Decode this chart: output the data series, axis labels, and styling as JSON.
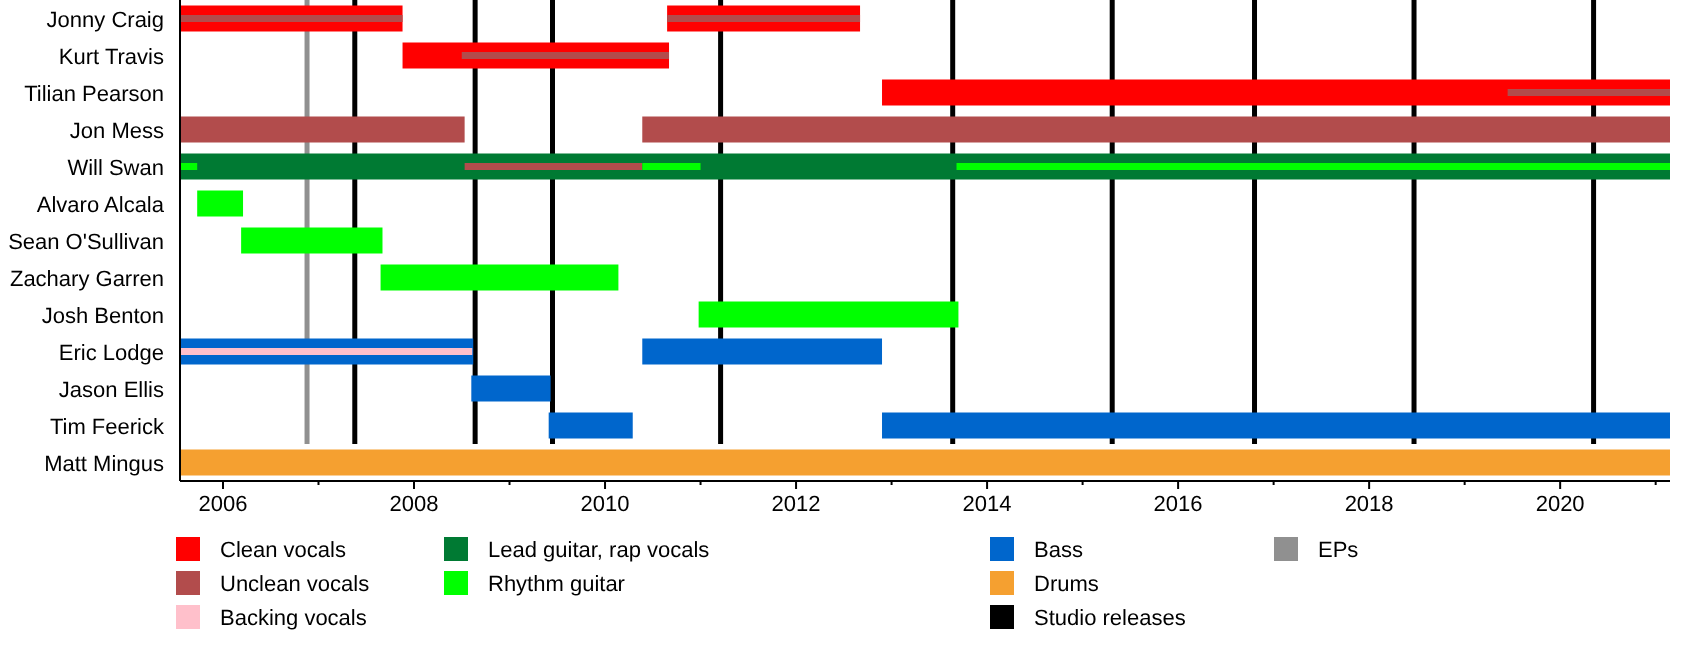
{
  "chart_data": {
    "type": "bar",
    "orientation": "horizontal",
    "legend": "bottom",
    "categories": [
      "Jonny Craig",
      "Kurt Travis",
      "Tilian Pearson",
      "Jon Mess",
      "Will Swan",
      "Alvaro Alcala",
      "Sean O'Sullivan",
      "Zachary Garren",
      "Josh Benton",
      "Eric Lodge",
      "Jason Ellis",
      "Tim Feerick",
      "Matt Mingus"
    ],
    "xlim": [
      2005.55,
      2021.15
    ],
    "xticks": [
      2006,
      {
        "value": 2007,
        "label": null
      },
      2008,
      {
        "value": 2009,
        "label": null
      },
      2010,
      {
        "value": 2011,
        "label": null
      },
      2012,
      {
        "value": 2013,
        "label": null
      },
      2014,
      {
        "value": 2015,
        "label": null
      },
      2016,
      {
        "value": 2017,
        "label": null
      },
      2018,
      {
        "value": 2019,
        "label": null
      },
      2020,
      {
        "value": 2021,
        "label": null
      }
    ],
    "series": [
      {
        "name": "Clean vocals",
        "color": "#ff0000",
        "base": [
          2005.55,
          2007.88,
          2012.9,
          null,
          null,
          null,
          null,
          null,
          null,
          null,
          null,
          null,
          null
        ],
        "values": [
          2.33,
          2.79,
          8.25,
          null,
          null,
          null,
          null,
          null,
          null,
          null,
          null,
          null,
          null
        ]
      },
      {
        "color": "#ff0000",
        "base": [
          2010.65,
          null,
          null,
          null,
          null,
          null,
          null,
          null,
          null,
          null,
          null,
          null,
          null
        ],
        "values": [
          2.02,
          null,
          null,
          null,
          null,
          null,
          null,
          null,
          null,
          null,
          null,
          null,
          null
        ]
      },
      {
        "name": "Unclean vocals",
        "color": "#b24c4c",
        "base": [
          null,
          null,
          null,
          2005.55,
          null,
          null,
          null,
          null,
          null,
          null,
          null,
          null,
          null
        ],
        "values": [
          null,
          null,
          null,
          2.98,
          null,
          null,
          null,
          null,
          null,
          null,
          null,
          null,
          null
        ]
      },
      {
        "color": "#b24c4c",
        "base": [
          null,
          null,
          null,
          2010.39,
          null,
          null,
          null,
          null,
          null,
          null,
          null,
          null,
          null
        ],
        "values": [
          null,
          null,
          null,
          10.76,
          null,
          null,
          null,
          null,
          null,
          null,
          null,
          null,
          null
        ]
      },
      {
        "name": "Backing vocals",
        "color": "#ffc0cb",
        "base": [
          null,
          null,
          null,
          null,
          null,
          null,
          null,
          null,
          null,
          2005.55,
          null,
          null,
          null
        ],
        "values": [
          null,
          null,
          null,
          null,
          null,
          null,
          null,
          null,
          null,
          3.06,
          null,
          null,
          null
        ]
      },
      {
        "name": "Lead guitar, rap vocals",
        "color": "#007a33",
        "base": [
          null,
          null,
          null,
          null,
          2005.55,
          null,
          null,
          null,
          null,
          null,
          null,
          null,
          null
        ],
        "values": [
          null,
          null,
          null,
          null,
          15.6,
          null,
          null,
          null,
          null,
          null,
          null,
          null,
          null
        ]
      },
      {
        "name": "Rhythm guitar",
        "color": "#00ff00",
        "base": [
          null,
          null,
          null,
          null,
          null,
          2005.73,
          2006.19,
          2007.65,
          2010.98,
          null,
          null,
          null,
          null
        ],
        "values": [
          null,
          null,
          null,
          null,
          null,
          0.48,
          1.48,
          2.49,
          2.72,
          null,
          null,
          null,
          null
        ]
      },
      {
        "name": "Bass",
        "color": "#0066cc",
        "base": [
          null,
          null,
          null,
          null,
          null,
          null,
          null,
          null,
          null,
          2005.55,
          2008.6,
          2009.41,
          null
        ],
        "values": [
          null,
          null,
          null,
          null,
          null,
          null,
          null,
          null,
          null,
          3.07,
          0.83,
          0.88,
          null
        ]
      },
      {
        "color": "#0066cc",
        "base": [
          null,
          null,
          null,
          null,
          null,
          null,
          null,
          null,
          null,
          2010.39,
          null,
          2012.9,
          null
        ],
        "values": [
          null,
          null,
          null,
          null,
          null,
          null,
          null,
          null,
          null,
          2.51,
          null,
          8.25,
          null
        ]
      },
      {
        "name": "Drums",
        "color": "#f5a030",
        "base": [
          null,
          null,
          null,
          null,
          null,
          null,
          null,
          null,
          null,
          null,
          null,
          null,
          2005.55
        ],
        "values": [
          null,
          null,
          null,
          null,
          null,
          null,
          null,
          null,
          null,
          null,
          null,
          null,
          15.6
        ]
      },
      {
        "color": "#b24c4c",
        "base": [
          2005.55,
          2008.5,
          2019.45,
          null,
          2008.53,
          null,
          null,
          null,
          null,
          null,
          null,
          null,
          null
        ],
        "values": [
          2.33,
          2.17,
          1.7,
          null,
          1.86,
          null,
          null,
          null,
          null,
          null,
          null,
          null,
          null
        ]
      },
      {
        "color": "#b24c4c",
        "base": [
          2010.65,
          null,
          null,
          null,
          null,
          null,
          null,
          null,
          null,
          null,
          null,
          null,
          null
        ],
        "values": [
          2.02,
          null,
          null,
          null,
          null,
          null,
          null,
          null,
          null,
          null,
          null,
          null,
          null
        ]
      },
      {
        "color": "#00ff00",
        "base": [
          null,
          null,
          null,
          null,
          2005.55,
          null,
          null,
          null,
          null,
          null,
          null,
          null,
          null
        ],
        "values": [
          null,
          null,
          null,
          null,
          0.18,
          null,
          null,
          null,
          null,
          null,
          null,
          null,
          null
        ]
      },
      {
        "color": "#00ff00",
        "base": [
          null,
          null,
          null,
          null,
          2010.39,
          null,
          null,
          null,
          null,
          null,
          null,
          null,
          null
        ],
        "values": [
          null,
          null,
          null,
          null,
          0.61,
          null,
          null,
          null,
          null,
          null,
          null,
          null,
          null
        ]
      },
      {
        "color": "#00ff00",
        "base": [
          null,
          null,
          null,
          null,
          2013.68,
          null,
          null,
          null,
          null,
          null,
          null,
          null,
          null
        ],
        "values": [
          null,
          null,
          null,
          null,
          7.47,
          null,
          null,
          null,
          null,
          null,
          null,
          null,
          null
        ]
      }
    ],
    "ref_lines": [
      {
        "axis": "x",
        "value": 2007.38,
        "label": "Studio releases",
        "color": "#000000"
      },
      {
        "axis": "x",
        "value": 2008.64,
        "color": "#000000"
      },
      {
        "axis": "x",
        "value": 2009.45,
        "color": "#000000"
      },
      {
        "axis": "x",
        "value": 2011.21,
        "color": "#000000"
      },
      {
        "axis": "x",
        "value": 2013.64,
        "color": "#000000"
      },
      {
        "axis": "x",
        "value": 2015.31,
        "color": "#000000"
      },
      {
        "axis": "x",
        "value": 2016.8,
        "color": "#000000"
      },
      {
        "axis": "x",
        "value": 2018.47,
        "color": "#000000"
      },
      {
        "axis": "x",
        "value": 2020.35,
        "color": "#000000"
      },
      {
        "axis": "x",
        "value": 2006.88,
        "label": "EPs",
        "color": "#909090"
      }
    ]
  }
}
